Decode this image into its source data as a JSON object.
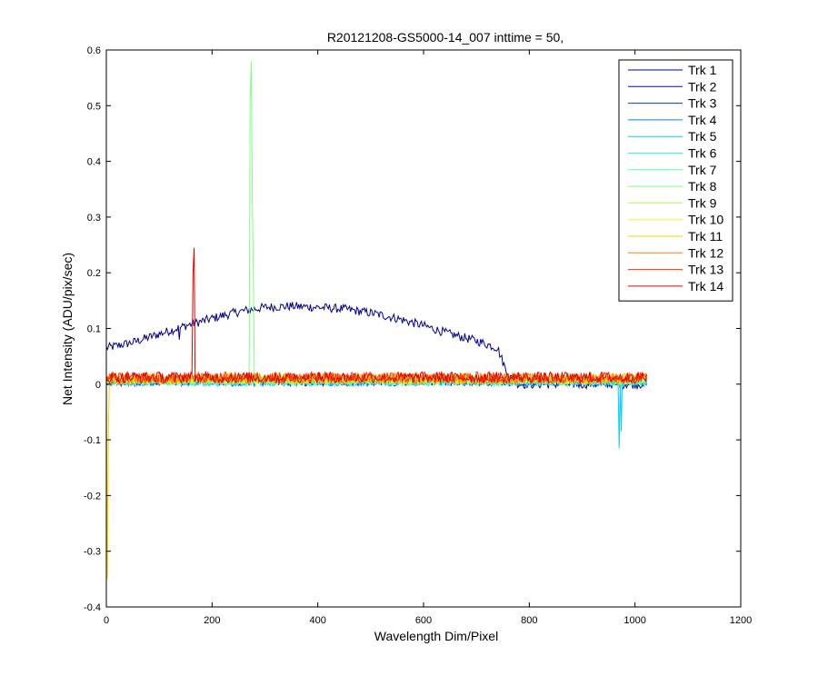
{
  "chart_data": {
    "type": "line",
    "title": "R20121208-GS5000-14_007 inttime = 50,",
    "xlabel": "Wavelength Dim/Pixel",
    "ylabel": "Net Intensity (ADU/pix/sec)",
    "xlim": [
      0,
      1200
    ],
    "ylim": [
      -0.4,
      0.6
    ],
    "x_ticks": [
      0,
      200,
      400,
      600,
      800,
      1000,
      1200
    ],
    "x_tick_labels": [
      "0",
      "200",
      "400",
      "600",
      "800",
      "1000",
      "1200"
    ],
    "y_ticks": [
      -0.4,
      -0.3,
      -0.2,
      -0.1,
      0,
      0.1,
      0.2,
      0.3,
      0.4,
      0.5,
      0.6
    ],
    "y_tick_labels": [
      "-0.4",
      "-0.3",
      "-0.2",
      "-0.1",
      "0",
      "0.1",
      "0.2",
      "0.3",
      "0.4",
      "0.5",
      "0.6"
    ],
    "grid": false,
    "legend_position": "top-right",
    "series": [
      {
        "name": "Trk 1",
        "color": "#00008f",
        "noise": 0.008,
        "envelope": [
          [
            0,
            0.065
          ],
          [
            50,
            0.075
          ],
          [
            100,
            0.09
          ],
          [
            150,
            0.105
          ],
          [
            200,
            0.118
          ],
          [
            250,
            0.13
          ],
          [
            300,
            0.138
          ],
          [
            350,
            0.14
          ],
          [
            400,
            0.138
          ],
          [
            450,
            0.135
          ],
          [
            500,
            0.128
          ],
          [
            550,
            0.118
          ],
          [
            600,
            0.105
          ],
          [
            650,
            0.09
          ],
          [
            700,
            0.078
          ],
          [
            740,
            0.065
          ],
          [
            760,
            0.015
          ],
          [
            780,
            0.0
          ],
          [
            1023,
            0.0
          ]
        ],
        "spikes": [
          [
            138,
            0.08
          ]
        ]
      },
      {
        "name": "Trk 2",
        "color": "#0000df",
        "noise": 0.008,
        "envelope": [
          [
            0,
            0.005
          ],
          [
            1023,
            0.005
          ]
        ],
        "spikes": []
      },
      {
        "name": "Trk 3",
        "color": "#0030ff",
        "noise": 0.008,
        "envelope": [
          [
            0,
            0.005
          ],
          [
            1023,
            0.005
          ]
        ],
        "spikes": []
      },
      {
        "name": "Trk 4",
        "color": "#0080ff",
        "noise": 0.008,
        "envelope": [
          [
            0,
            0.005
          ],
          [
            1023,
            0.005
          ]
        ],
        "spikes": []
      },
      {
        "name": "Trk 5",
        "color": "#00cfff",
        "noise": 0.008,
        "envelope": [
          [
            0,
            0.005
          ],
          [
            1023,
            0.005
          ]
        ],
        "spikes": [
          [
            970,
            -0.115
          ],
          [
            975,
            -0.085
          ]
        ]
      },
      {
        "name": "Trk 6",
        "color": "#20ffdf",
        "noise": 0.008,
        "envelope": [
          [
            0,
            0.005
          ],
          [
            1023,
            0.005
          ]
        ],
        "spikes": []
      },
      {
        "name": "Trk 7",
        "color": "#60ffaf",
        "noise": 0.008,
        "envelope": [
          [
            0,
            0.005
          ],
          [
            1023,
            0.005
          ]
        ],
        "spikes": []
      },
      {
        "name": "Trk 8",
        "color": "#80ff80",
        "noise": 0.008,
        "envelope": [
          [
            0,
            0.008
          ],
          [
            1023,
            0.008
          ]
        ],
        "spikes": [
          [
            272,
            0.51
          ],
          [
            275,
            0.58
          ],
          [
            277,
            0.35
          ],
          [
            279,
            0.2
          ]
        ]
      },
      {
        "name": "Trk 9",
        "color": "#afff50",
        "noise": 0.008,
        "envelope": [
          [
            0,
            0.008
          ],
          [
            1023,
            0.008
          ]
        ],
        "spikes": []
      },
      {
        "name": "Trk 10",
        "color": "#dfff20",
        "noise": 0.008,
        "envelope": [
          [
            0,
            0.008
          ],
          [
            1023,
            0.008
          ]
        ],
        "spikes": []
      },
      {
        "name": "Trk 11",
        "color": "#ffcf00",
        "noise": 0.01,
        "envelope": [
          [
            0,
            0.01
          ],
          [
            1023,
            0.01
          ]
        ],
        "spikes": [
          [
            2,
            -0.35
          ],
          [
            4,
            -0.08
          ]
        ]
      },
      {
        "name": "Trk 12",
        "color": "#ff8000",
        "noise": 0.01,
        "envelope": [
          [
            0,
            0.01
          ],
          [
            1023,
            0.01
          ]
        ],
        "spikes": []
      },
      {
        "name": "Trk 13",
        "color": "#ff3000",
        "noise": 0.01,
        "envelope": [
          [
            0,
            0.012
          ],
          [
            1023,
            0.012
          ]
        ],
        "spikes": []
      },
      {
        "name": "Trk 14",
        "color": "#df0000",
        "noise": 0.01,
        "envelope": [
          [
            0,
            0.012
          ],
          [
            1023,
            0.012
          ]
        ],
        "spikes": [
          [
            165,
            0.2
          ],
          [
            167,
            0.245
          ]
        ]
      }
    ]
  }
}
